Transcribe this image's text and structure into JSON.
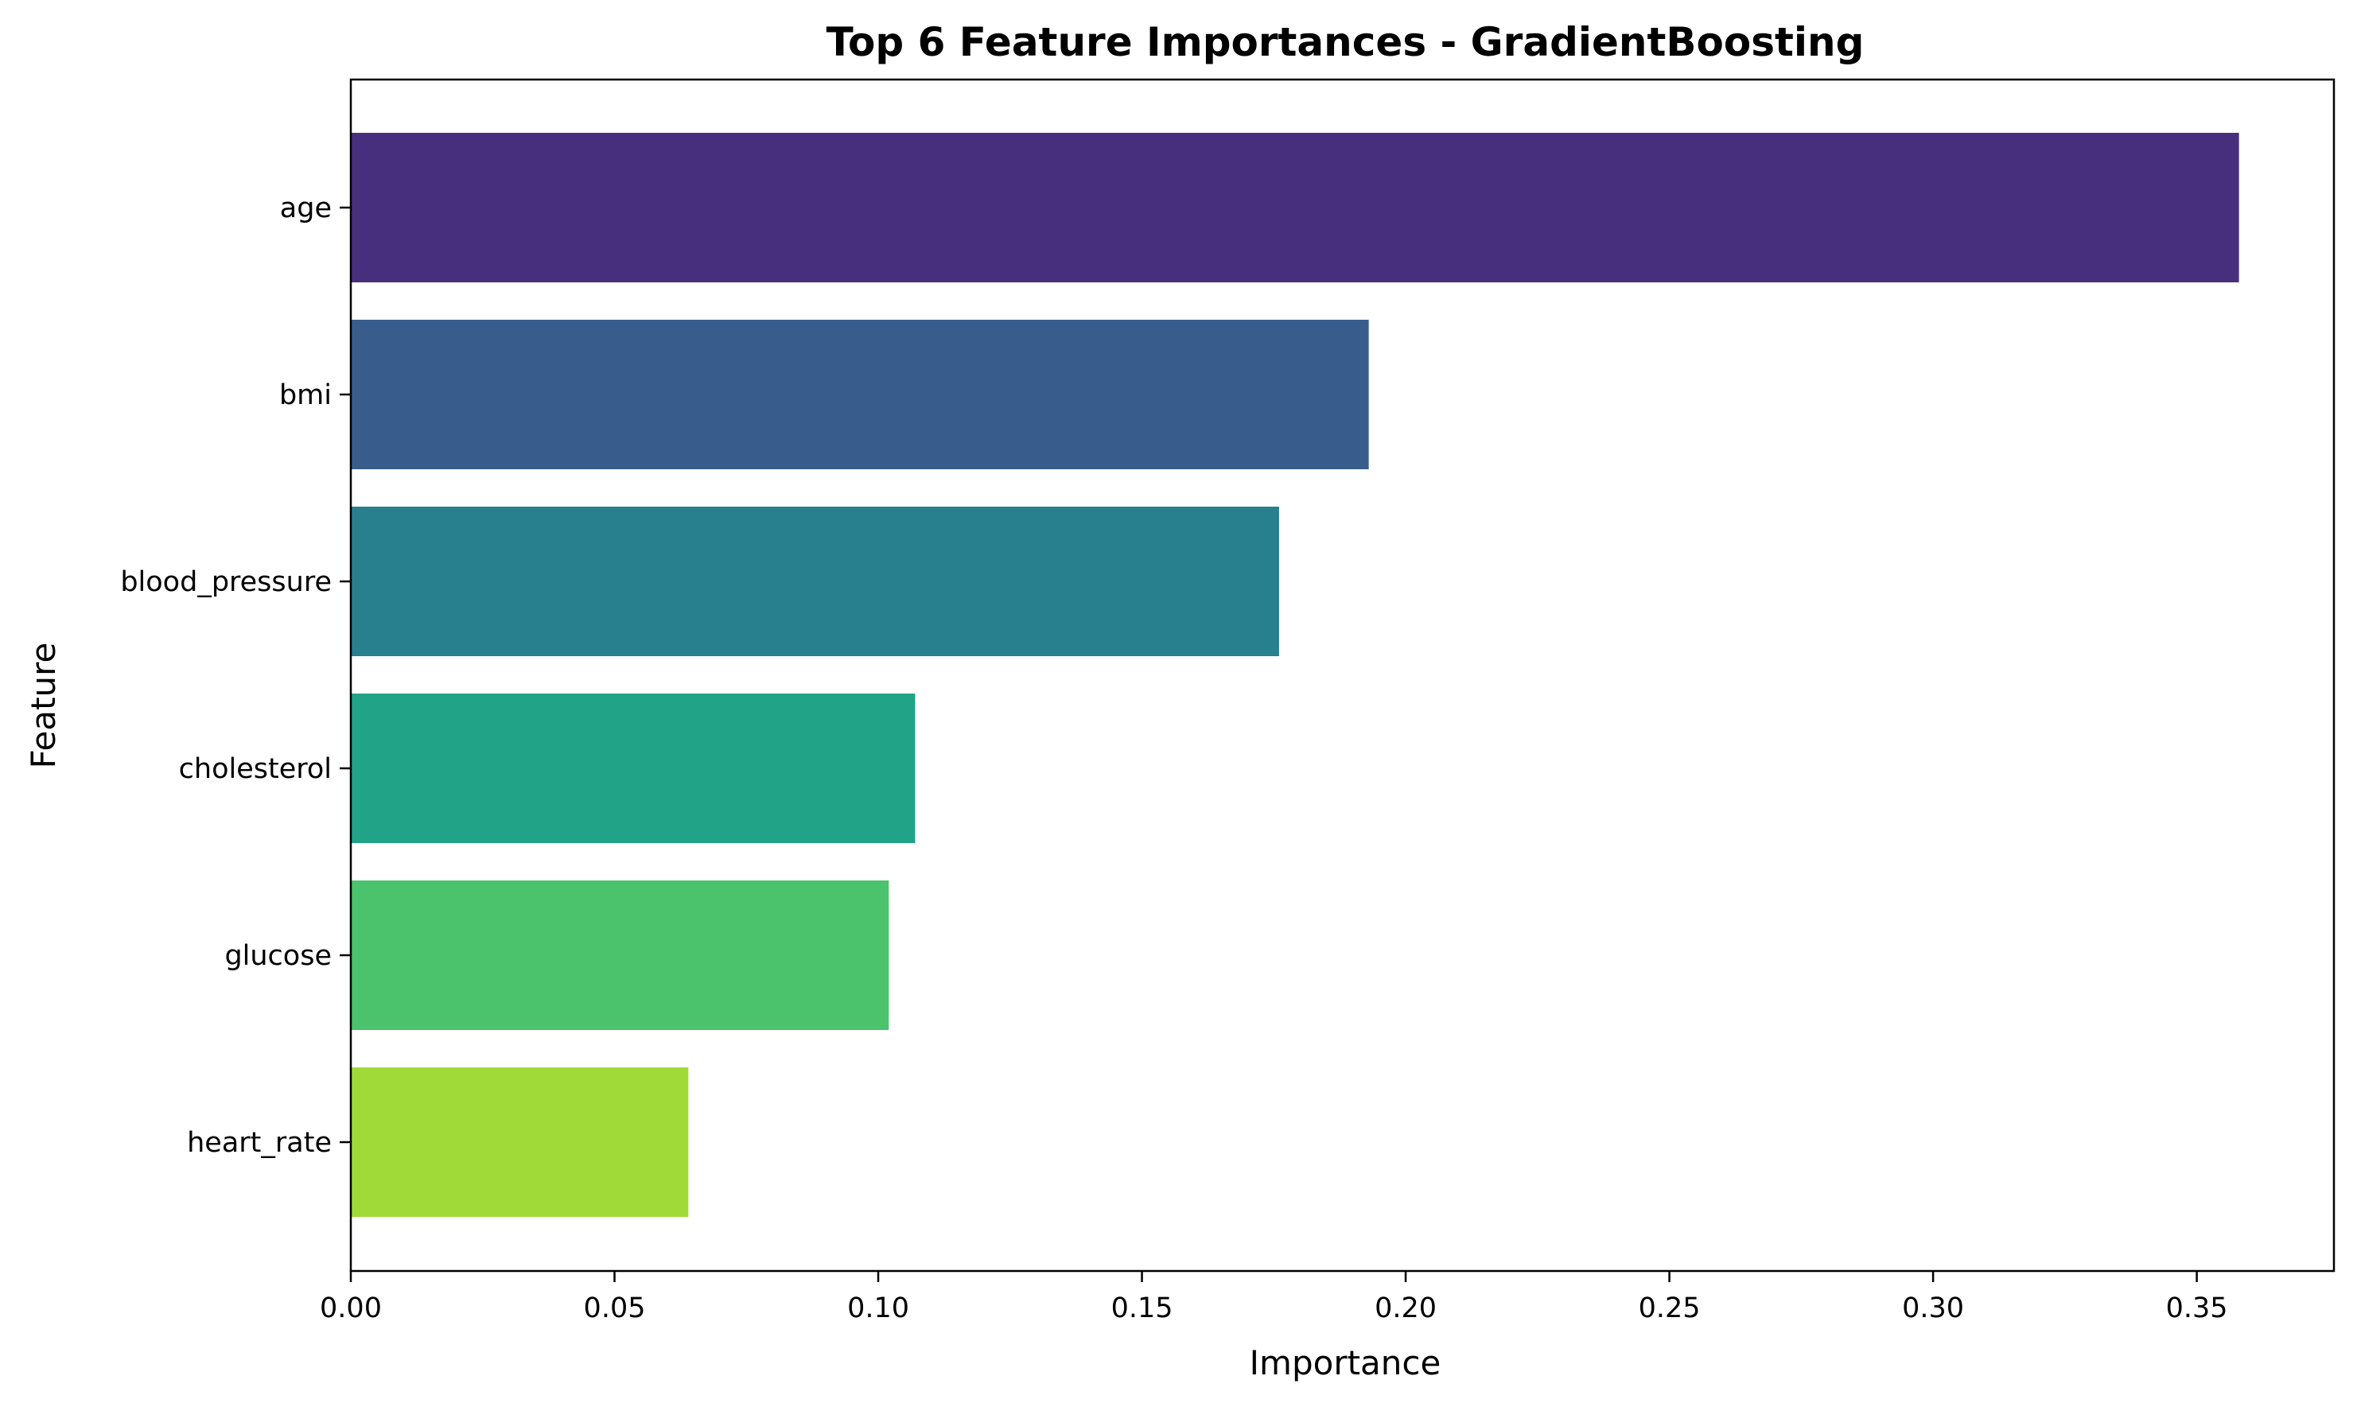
{
  "chart_data": {
    "type": "bar",
    "orientation": "horizontal",
    "title": "Top 6 Feature Importances - GradientBoosting",
    "xlabel": "Importance",
    "ylabel": "Feature",
    "categories": [
      "age",
      "bmi",
      "blood_pressure",
      "cholesterol",
      "glucose",
      "heart_rate"
    ],
    "values": [
      0.358,
      0.193,
      0.176,
      0.107,
      0.102,
      0.064
    ],
    "colors": [
      "#482f7e",
      "#385d8d",
      "#287f8e",
      "#20a386",
      "#4bc26c",
      "#a0da39"
    ],
    "xlim": [
      0,
      0.376
    ],
    "xticks": [
      0.0,
      0.05,
      0.1,
      0.15,
      0.2,
      0.25,
      0.3,
      0.35
    ],
    "xtick_labels": [
      "0.00",
      "0.05",
      "0.10",
      "0.15",
      "0.20",
      "0.25",
      "0.30",
      "0.35"
    ],
    "grid": false,
    "legend": null
  }
}
